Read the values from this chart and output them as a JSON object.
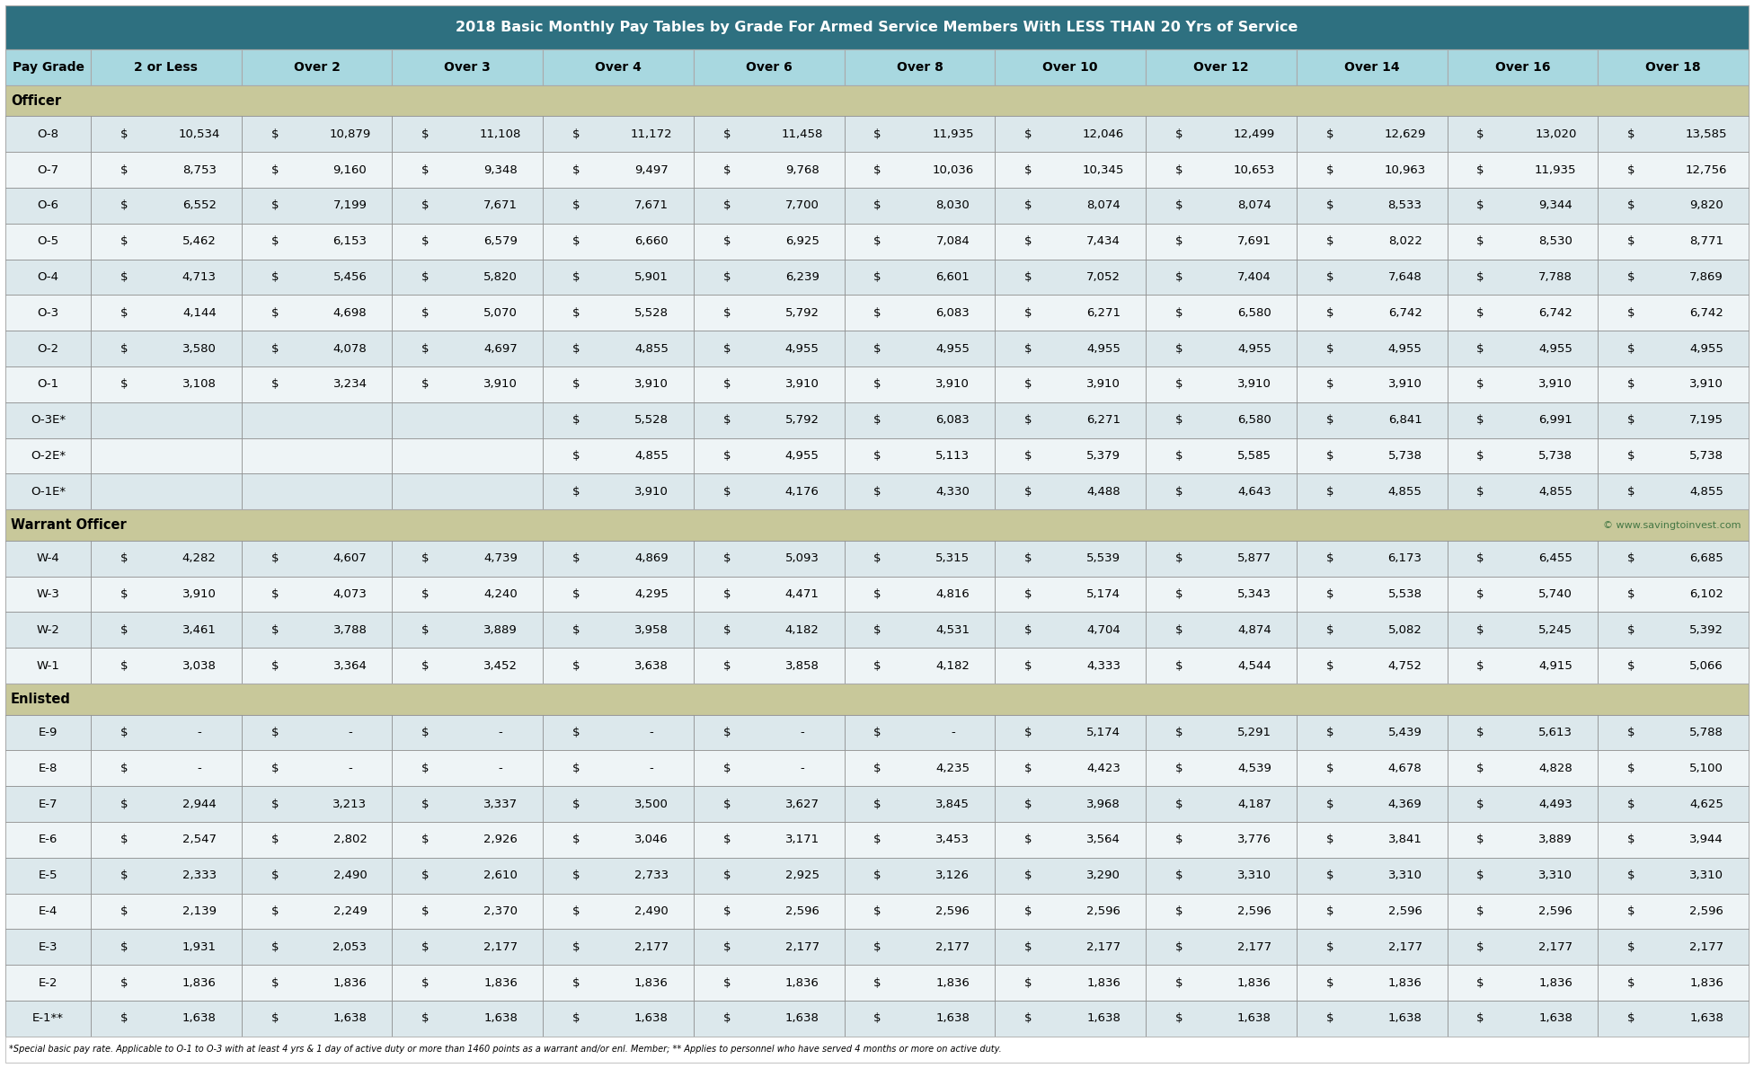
{
  "title": "2018 Basic Monthly Pay Tables by Grade For Armed Service Members With LESS THAN 20 Yrs of Service",
  "title_bg": "#2e7080",
  "title_color": "#ffffff",
  "header_bg": "#a8d8e0",
  "header_color": "#000000",
  "section_header_bg": "#c8c89a",
  "section_header_color": "#000000",
  "row_bg_a": "#dce8ec",
  "row_bg_b": "#eef4f6",
  "empty_row_bg_a": "#e8e8d8",
  "empty_row_bg_b": "#f2f2e8",
  "grid_color": "#aaaaaa",
  "footnote_bg": "#ffffff",
  "watermark_color": "#447744",
  "columns": [
    "Pay Grade",
    "2 or Less",
    "Over 2",
    "Over 3",
    "Over 4",
    "Over 6",
    "Over 8",
    "Over 10",
    "Over 12",
    "Over 14",
    "Over 16",
    "Over 18"
  ],
  "officer_rows": [
    [
      "O-8",
      "$",
      "10,534",
      "$",
      "10,879",
      "$",
      "11,108",
      "$",
      "11,172",
      "$",
      "11,458",
      "$",
      "11,935",
      "$",
      "12,046",
      "$",
      "12,499",
      "$",
      "12,629",
      "$",
      "13,020",
      "$",
      "13,585"
    ],
    [
      "O-7",
      "$",
      "8,753",
      "$",
      "9,160",
      "$",
      "9,348",
      "$",
      "9,497",
      "$",
      "9,768",
      "$",
      "10,036",
      "$",
      "10,345",
      "$",
      "10,653",
      "$",
      "10,963",
      "$",
      "11,935",
      "$",
      "12,756"
    ],
    [
      "O-6",
      "$",
      "6,552",
      "$",
      "7,199",
      "$",
      "7,671",
      "$",
      "7,671",
      "$",
      "7,700",
      "$",
      "8,030",
      "$",
      "8,074",
      "$",
      "8,074",
      "$",
      "8,533",
      "$",
      "9,344",
      "$",
      "9,820"
    ],
    [
      "O-5",
      "$",
      "5,462",
      "$",
      "6,153",
      "$",
      "6,579",
      "$",
      "6,660",
      "$",
      "6,925",
      "$",
      "7,084",
      "$",
      "7,434",
      "$",
      "7,691",
      "$",
      "8,022",
      "$",
      "8,530",
      "$",
      "8,771"
    ],
    [
      "O-4",
      "$",
      "4,713",
      "$",
      "5,456",
      "$",
      "5,820",
      "$",
      "5,901",
      "$",
      "6,239",
      "$",
      "6,601",
      "$",
      "7,052",
      "$",
      "7,404",
      "$",
      "7,648",
      "$",
      "7,788",
      "$",
      "7,869"
    ],
    [
      "O-3",
      "$",
      "4,144",
      "$",
      "4,698",
      "$",
      "5,070",
      "$",
      "5,528",
      "$",
      "5,792",
      "$",
      "6,083",
      "$",
      "6,271",
      "$",
      "6,580",
      "$",
      "6,742",
      "$",
      "6,742",
      "$",
      "6,742"
    ],
    [
      "O-2",
      "$",
      "3,580",
      "$",
      "4,078",
      "$",
      "4,697",
      "$",
      "4,855",
      "$",
      "4,955",
      "$",
      "4,955",
      "$",
      "4,955",
      "$",
      "4,955",
      "$",
      "4,955",
      "$",
      "4,955",
      "$",
      "4,955"
    ],
    [
      "O-1",
      "$",
      "3,108",
      "$",
      "3,234",
      "$",
      "3,910",
      "$",
      "3,910",
      "$",
      "3,910",
      "$",
      "3,910",
      "$",
      "3,910",
      "$",
      "3,910",
      "$",
      "3,910",
      "$",
      "3,910",
      "$",
      "3,910"
    ],
    [
      "O-3E*",
      "",
      "",
      "",
      "",
      "",
      "",
      "$",
      "5,528",
      "$",
      "5,792",
      "$",
      "6,083",
      "$",
      "6,271",
      "$",
      "6,580",
      "$",
      "6,841",
      "$",
      "6,991",
      "$",
      "7,195"
    ],
    [
      "O-2E*",
      "",
      "",
      "",
      "",
      "",
      "",
      "$",
      "4,855",
      "$",
      "4,955",
      "$",
      "5,113",
      "$",
      "5,379",
      "$",
      "5,585",
      "$",
      "5,738",
      "$",
      "5,738",
      "$",
      "5,738"
    ],
    [
      "O-1E*",
      "",
      "",
      "",
      "",
      "",
      "",
      "$",
      "3,910",
      "$",
      "4,176",
      "$",
      "4,330",
      "$",
      "4,488",
      "$",
      "4,643",
      "$",
      "4,855",
      "$",
      "4,855",
      "$",
      "4,855"
    ]
  ],
  "warrant_rows": [
    [
      "W-4",
      "$",
      "4,282",
      "$",
      "4,607",
      "$",
      "4,739",
      "$",
      "4,869",
      "$",
      "5,093",
      "$",
      "5,315",
      "$",
      "5,539",
      "$",
      "5,877",
      "$",
      "6,173",
      "$",
      "6,455",
      "$",
      "6,685"
    ],
    [
      "W-3",
      "$",
      "3,910",
      "$",
      "4,073",
      "$",
      "4,240",
      "$",
      "4,295",
      "$",
      "4,471",
      "$",
      "4,816",
      "$",
      "5,174",
      "$",
      "5,343",
      "$",
      "5,538",
      "$",
      "5,740",
      "$",
      "6,102"
    ],
    [
      "W-2",
      "$",
      "3,461",
      "$",
      "3,788",
      "$",
      "3,889",
      "$",
      "3,958",
      "$",
      "4,182",
      "$",
      "4,531",
      "$",
      "4,704",
      "$",
      "4,874",
      "$",
      "5,082",
      "$",
      "5,245",
      "$",
      "5,392"
    ],
    [
      "W-1",
      "$",
      "3,038",
      "$",
      "3,364",
      "$",
      "3,452",
      "$",
      "3,638",
      "$",
      "3,858",
      "$",
      "4,182",
      "$",
      "4,333",
      "$",
      "4,544",
      "$",
      "4,752",
      "$",
      "4,915",
      "$",
      "5,066"
    ]
  ],
  "enlisted_rows": [
    [
      "E-9",
      "$",
      "-",
      "$",
      "-",
      "$",
      "-",
      "$",
      "-",
      "$",
      "-",
      "$",
      "-",
      "$",
      "5,174",
      "$",
      "5,291",
      "$",
      "5,439",
      "$",
      "5,613",
      "$",
      "5,788"
    ],
    [
      "E-8",
      "$",
      "-",
      "$",
      "-",
      "$",
      "-",
      "$",
      "-",
      "$",
      "-",
      "$",
      "4,235",
      "$",
      "4,423",
      "$",
      "4,539",
      "$",
      "4,678",
      "$",
      "4,828",
      "$",
      "5,100"
    ],
    [
      "E-7",
      "$",
      "2,944",
      "$",
      "3,213",
      "$",
      "3,337",
      "$",
      "3,500",
      "$",
      "3,627",
      "$",
      "3,845",
      "$",
      "3,968",
      "$",
      "4,187",
      "$",
      "4,369",
      "$",
      "4,493",
      "$",
      "4,625"
    ],
    [
      "E-6",
      "$",
      "2,547",
      "$",
      "2,802",
      "$",
      "2,926",
      "$",
      "3,046",
      "$",
      "3,171",
      "$",
      "3,453",
      "$",
      "3,564",
      "$",
      "3,776",
      "$",
      "3,841",
      "$",
      "3,889",
      "$",
      "3,944"
    ],
    [
      "E-5",
      "$",
      "2,333",
      "$",
      "2,490",
      "$",
      "2,610",
      "$",
      "2,733",
      "$",
      "2,925",
      "$",
      "3,126",
      "$",
      "3,290",
      "$",
      "3,310",
      "$",
      "3,310",
      "$",
      "3,310",
      "$",
      "3,310"
    ],
    [
      "E-4",
      "$",
      "2,139",
      "$",
      "2,249",
      "$",
      "2,370",
      "$",
      "2,490",
      "$",
      "2,596",
      "$",
      "2,596",
      "$",
      "2,596",
      "$",
      "2,596",
      "$",
      "2,596",
      "$",
      "2,596",
      "$",
      "2,596"
    ],
    [
      "E-3",
      "$",
      "1,931",
      "$",
      "2,053",
      "$",
      "2,177",
      "$",
      "2,177",
      "$",
      "2,177",
      "$",
      "2,177",
      "$",
      "2,177",
      "$",
      "2,177",
      "$",
      "2,177",
      "$",
      "2,177",
      "$",
      "2,177"
    ],
    [
      "E-2",
      "$",
      "1,836",
      "$",
      "1,836",
      "$",
      "1,836",
      "$",
      "1,836",
      "$",
      "1,836",
      "$",
      "1,836",
      "$",
      "1,836",
      "$",
      "1,836",
      "$",
      "1,836",
      "$",
      "1,836",
      "$",
      "1,836"
    ],
    [
      "E-1**",
      "$",
      "1,638",
      "$",
      "1,638",
      "$",
      "1,638",
      "$",
      "1,638",
      "$",
      "1,638",
      "$",
      "1,638",
      "$",
      "1,638",
      "$",
      "1,638",
      "$",
      "1,638",
      "$",
      "1,638",
      "$",
      "1,638"
    ]
  ],
  "footnote": "*Special basic pay rate. Applicable to O-1 to O-3 with at least 4 yrs & 1 day of active duty or more than 1460 points as a warrant and/or enl. Member; ** Applies to personnel who have served 4 months or more on active duty.",
  "watermark": "© www.savingtoinvest.com"
}
